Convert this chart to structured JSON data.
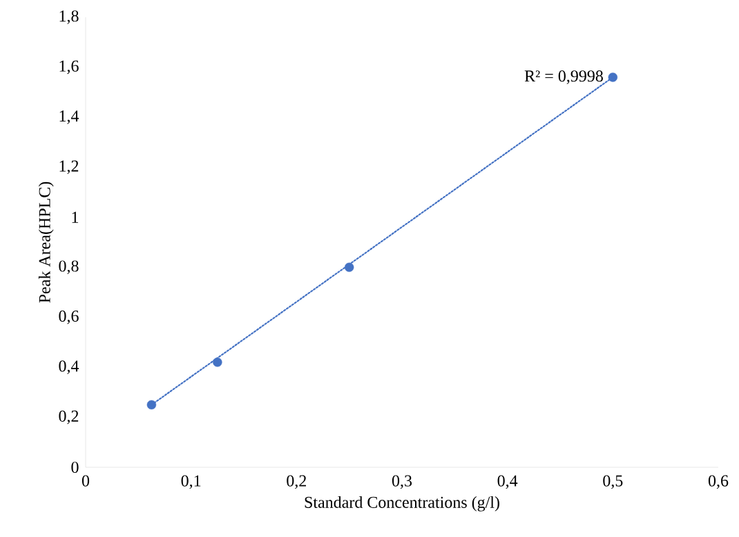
{
  "chart_data": {
    "type": "scatter",
    "xlabel": "Standard Concentrations (g/l)",
    "ylabel": "Peak Area(HPLC)",
    "xlim": [
      0,
      0.6
    ],
    "ylim": [
      0,
      1.8
    ],
    "xticks": [
      0,
      {
        "value": 0.1,
        "label": "0,1"
      },
      {
        "value": 0.2,
        "label": "0,2"
      },
      {
        "value": 0.3,
        "label": "0,3"
      },
      {
        "value": 0.4,
        "label": "0,4"
      },
      {
        "value": 0.5,
        "label": "0,5"
      },
      {
        "value": 0.6,
        "label": "0,6"
      }
    ],
    "yticks": [
      0,
      {
        "value": 0.2,
        "label": "0,2"
      },
      {
        "value": 0.4,
        "label": "0,4"
      },
      {
        "value": 0.6,
        "label": "0,6"
      },
      {
        "value": 0.8,
        "label": "0,8"
      },
      1,
      {
        "value": 1.2,
        "label": "1,2"
      },
      {
        "value": 1.4,
        "label": "1,4"
      },
      {
        "value": 1.6,
        "label": "1,6"
      },
      {
        "value": 1.8,
        "label": "1,8"
      }
    ],
    "grid": false,
    "marker": "circle",
    "series": [
      {
        "color": "#4472c4",
        "x": [
          0.0625,
          0.125,
          0.25,
          0.5
        ],
        "values": [
          0.25,
          0.42,
          0.8,
          1.56
        ]
      },
      {
        "type": "line",
        "color": "#4472c4",
        "marker": "none",
        "line_style": "dotted",
        "x": [
          0.0625,
          0.5
        ],
        "values": [
          0.25,
          1.56
        ]
      }
    ],
    "annotations": [
      {
        "text": "R² = 0,9998",
        "x": 0.5,
        "y": 1.56
      }
    ]
  }
}
